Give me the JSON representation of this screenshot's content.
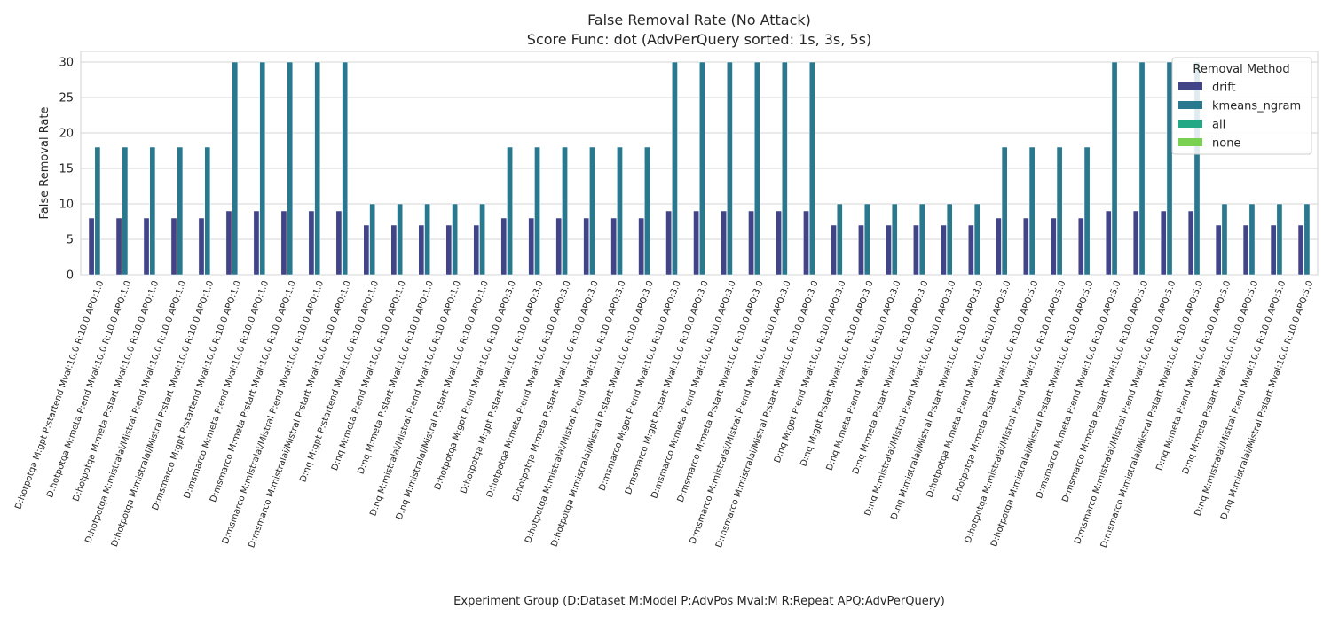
{
  "chart_data": {
    "type": "bar",
    "title": "False Removal Rate (No Attack)",
    "subtitle": "Score Func: dot (AdvPerQuery sorted: 1s, 3s, 5s)",
    "xlabel": "Experiment Group (D:Dataset M:Model P:AdvPos Mval:M R:Repeat APQ:AdvPerQuery)",
    "ylabel": "False Removal Rate",
    "ylim": [
      0,
      31.5
    ],
    "yticks": [
      0,
      5,
      10,
      15,
      20,
      25,
      30
    ],
    "grid": true,
    "legend": {
      "title": "Removal Method",
      "placement": "top-right"
    },
    "categories": [
      "D:hotpotqa M:gpt P:startend Mval:10.0 R:10.0 APQ:1.0",
      "D:hotpotqa M:meta P:end Mval:10.0 R:10.0 APQ:1.0",
      "D:hotpotqa M:meta P:start Mval:10.0 R:10.0 APQ:1.0",
      "D:hotpotqa M:mistralai/Mistral P:end Mval:10.0 R:10.0 APQ:1.0",
      "D:hotpotqa M:mistralai/Mistral P:start Mval:10.0 R:10.0 APQ:1.0",
      "D:msmarco M:gpt P:startend Mval:10.0 R:10.0 APQ:1.0",
      "D:msmarco M:meta P:end Mval:10.0 R:10.0 APQ:1.0",
      "D:msmarco M:meta P:start Mval:10.0 R:10.0 APQ:1.0",
      "D:msmarco M:mistralai/Mistral P:end Mval:10.0 R:10.0 APQ:1.0",
      "D:msmarco M:mistralai/Mistral P:start Mval:10.0 R:10.0 APQ:1.0",
      "D:nq M:gpt P:startend Mval:10.0 R:10.0 APQ:1.0",
      "D:nq M:meta P:end Mval:10.0 R:10.0 APQ:1.0",
      "D:nq M:meta P:start Mval:10.0 R:10.0 APQ:1.0",
      "D:nq M:mistralai/Mistral P:end Mval:10.0 R:10.0 APQ:1.0",
      "D:nq M:mistralai/Mistral P:start Mval:10.0 R:10.0 APQ:1.0",
      "D:hotpotqa M:gpt P:end Mval:10.0 R:10.0 APQ:3.0",
      "D:hotpotqa M:gpt P:start Mval:10.0 R:10.0 APQ:3.0",
      "D:hotpotqa M:meta P:end Mval:10.0 R:10.0 APQ:3.0",
      "D:hotpotqa M:meta P:start Mval:10.0 R:10.0 APQ:3.0",
      "D:hotpotqa M:mistralai/Mistral P:end Mval:10.0 R:10.0 APQ:3.0",
      "D:hotpotqa M:mistralai/Mistral P:start Mval:10.0 R:10.0 APQ:3.0",
      "D:msmarco M:gpt P:end Mval:10.0 R:10.0 APQ:3.0",
      "D:msmarco M:gpt P:start Mval:10.0 R:10.0 APQ:3.0",
      "D:msmarco M:meta P:end Mval:10.0 R:10.0 APQ:3.0",
      "D:msmarco M:meta P:start Mval:10.0 R:10.0 APQ:3.0",
      "D:msmarco M:mistralai/Mistral P:end Mval:10.0 R:10.0 APQ:3.0",
      "D:msmarco M:mistralai/Mistral P:start Mval:10.0 R:10.0 APQ:3.0",
      "D:nq M:gpt P:end Mval:10.0 R:10.0 APQ:3.0",
      "D:nq M:gpt P:start Mval:10.0 R:10.0 APQ:3.0",
      "D:nq M:meta P:end Mval:10.0 R:10.0 APQ:3.0",
      "D:nq M:meta P:start Mval:10.0 R:10.0 APQ:3.0",
      "D:nq M:mistralai/Mistral P:end Mval:10.0 R:10.0 APQ:3.0",
      "D:nq M:mistralai/Mistral P:start Mval:10.0 R:10.0 APQ:3.0",
      "D:hotpotqa M:meta P:end Mval:10.0 R:10.0 APQ:5.0",
      "D:hotpotqa M:meta P:start Mval:10.0 R:10.0 APQ:5.0",
      "D:hotpotqa M:mistralai/Mistral P:end Mval:10.0 R:10.0 APQ:5.0",
      "D:hotpotqa M:mistralai/Mistral P:start Mval:10.0 R:10.0 APQ:5.0",
      "D:msmarco M:meta P:end Mval:10.0 R:10.0 APQ:5.0",
      "D:msmarco M:meta P:start Mval:10.0 R:10.0 APQ:5.0",
      "D:msmarco M:mistralai/Mistral P:end Mval:10.0 R:10.0 APQ:5.0",
      "D:msmarco M:mistralai/Mistral P:start Mval:10.0 R:10.0 APQ:5.0",
      "D:nq M:meta P:end Mval:10.0 R:10.0 APQ:5.0",
      "D:nq M:meta P:start Mval:10.0 R:10.0 APQ:5.0",
      "D:nq M:mistralai/Mistral P:end Mval:10.0 R:10.0 APQ:5.0",
      "D:nq M:mistralai/Mistral P:start Mval:10.0 R:10.0 APQ:5.0"
    ],
    "series": [
      {
        "name": "drift",
        "color": "#414487",
        "values": [
          8,
          8,
          8,
          8,
          8,
          9,
          9,
          9,
          9,
          9,
          7,
          7,
          7,
          7,
          7,
          8,
          8,
          8,
          8,
          8,
          8,
          9,
          9,
          9,
          9,
          9,
          9,
          7,
          7,
          7,
          7,
          7,
          7,
          8,
          8,
          8,
          8,
          9,
          9,
          9,
          9,
          7,
          7,
          7,
          7
        ]
      },
      {
        "name": "kmeans_ngram",
        "color": "#2a788e",
        "values": [
          18,
          18,
          18,
          18,
          18,
          30,
          30,
          30,
          30,
          30,
          10,
          10,
          10,
          10,
          10,
          18,
          18,
          18,
          18,
          18,
          18,
          30,
          30,
          30,
          30,
          30,
          30,
          10,
          10,
          10,
          10,
          10,
          10,
          18,
          18,
          18,
          18,
          30,
          30,
          30,
          30,
          10,
          10,
          10,
          10
        ]
      },
      {
        "name": "all",
        "color": "#22a884",
        "values": [
          0,
          0,
          0,
          0,
          0,
          0,
          0,
          0,
          0,
          0,
          0,
          0,
          0,
          0,
          0,
          0,
          0,
          0,
          0,
          0,
          0,
          0,
          0,
          0,
          0,
          0,
          0,
          0,
          0,
          0,
          0,
          0,
          0,
          0,
          0,
          0,
          0,
          0,
          0,
          0,
          0,
          0,
          0,
          0,
          0
        ]
      },
      {
        "name": "none",
        "color": "#7ad151",
        "values": [
          0,
          0,
          0,
          0,
          0,
          0,
          0,
          0,
          0,
          0,
          0,
          0,
          0,
          0,
          0,
          0,
          0,
          0,
          0,
          0,
          0,
          0,
          0,
          0,
          0,
          0,
          0,
          0,
          0,
          0,
          0,
          0,
          0,
          0,
          0,
          0,
          0,
          0,
          0,
          0,
          0,
          0,
          0,
          0,
          0
        ]
      }
    ]
  }
}
